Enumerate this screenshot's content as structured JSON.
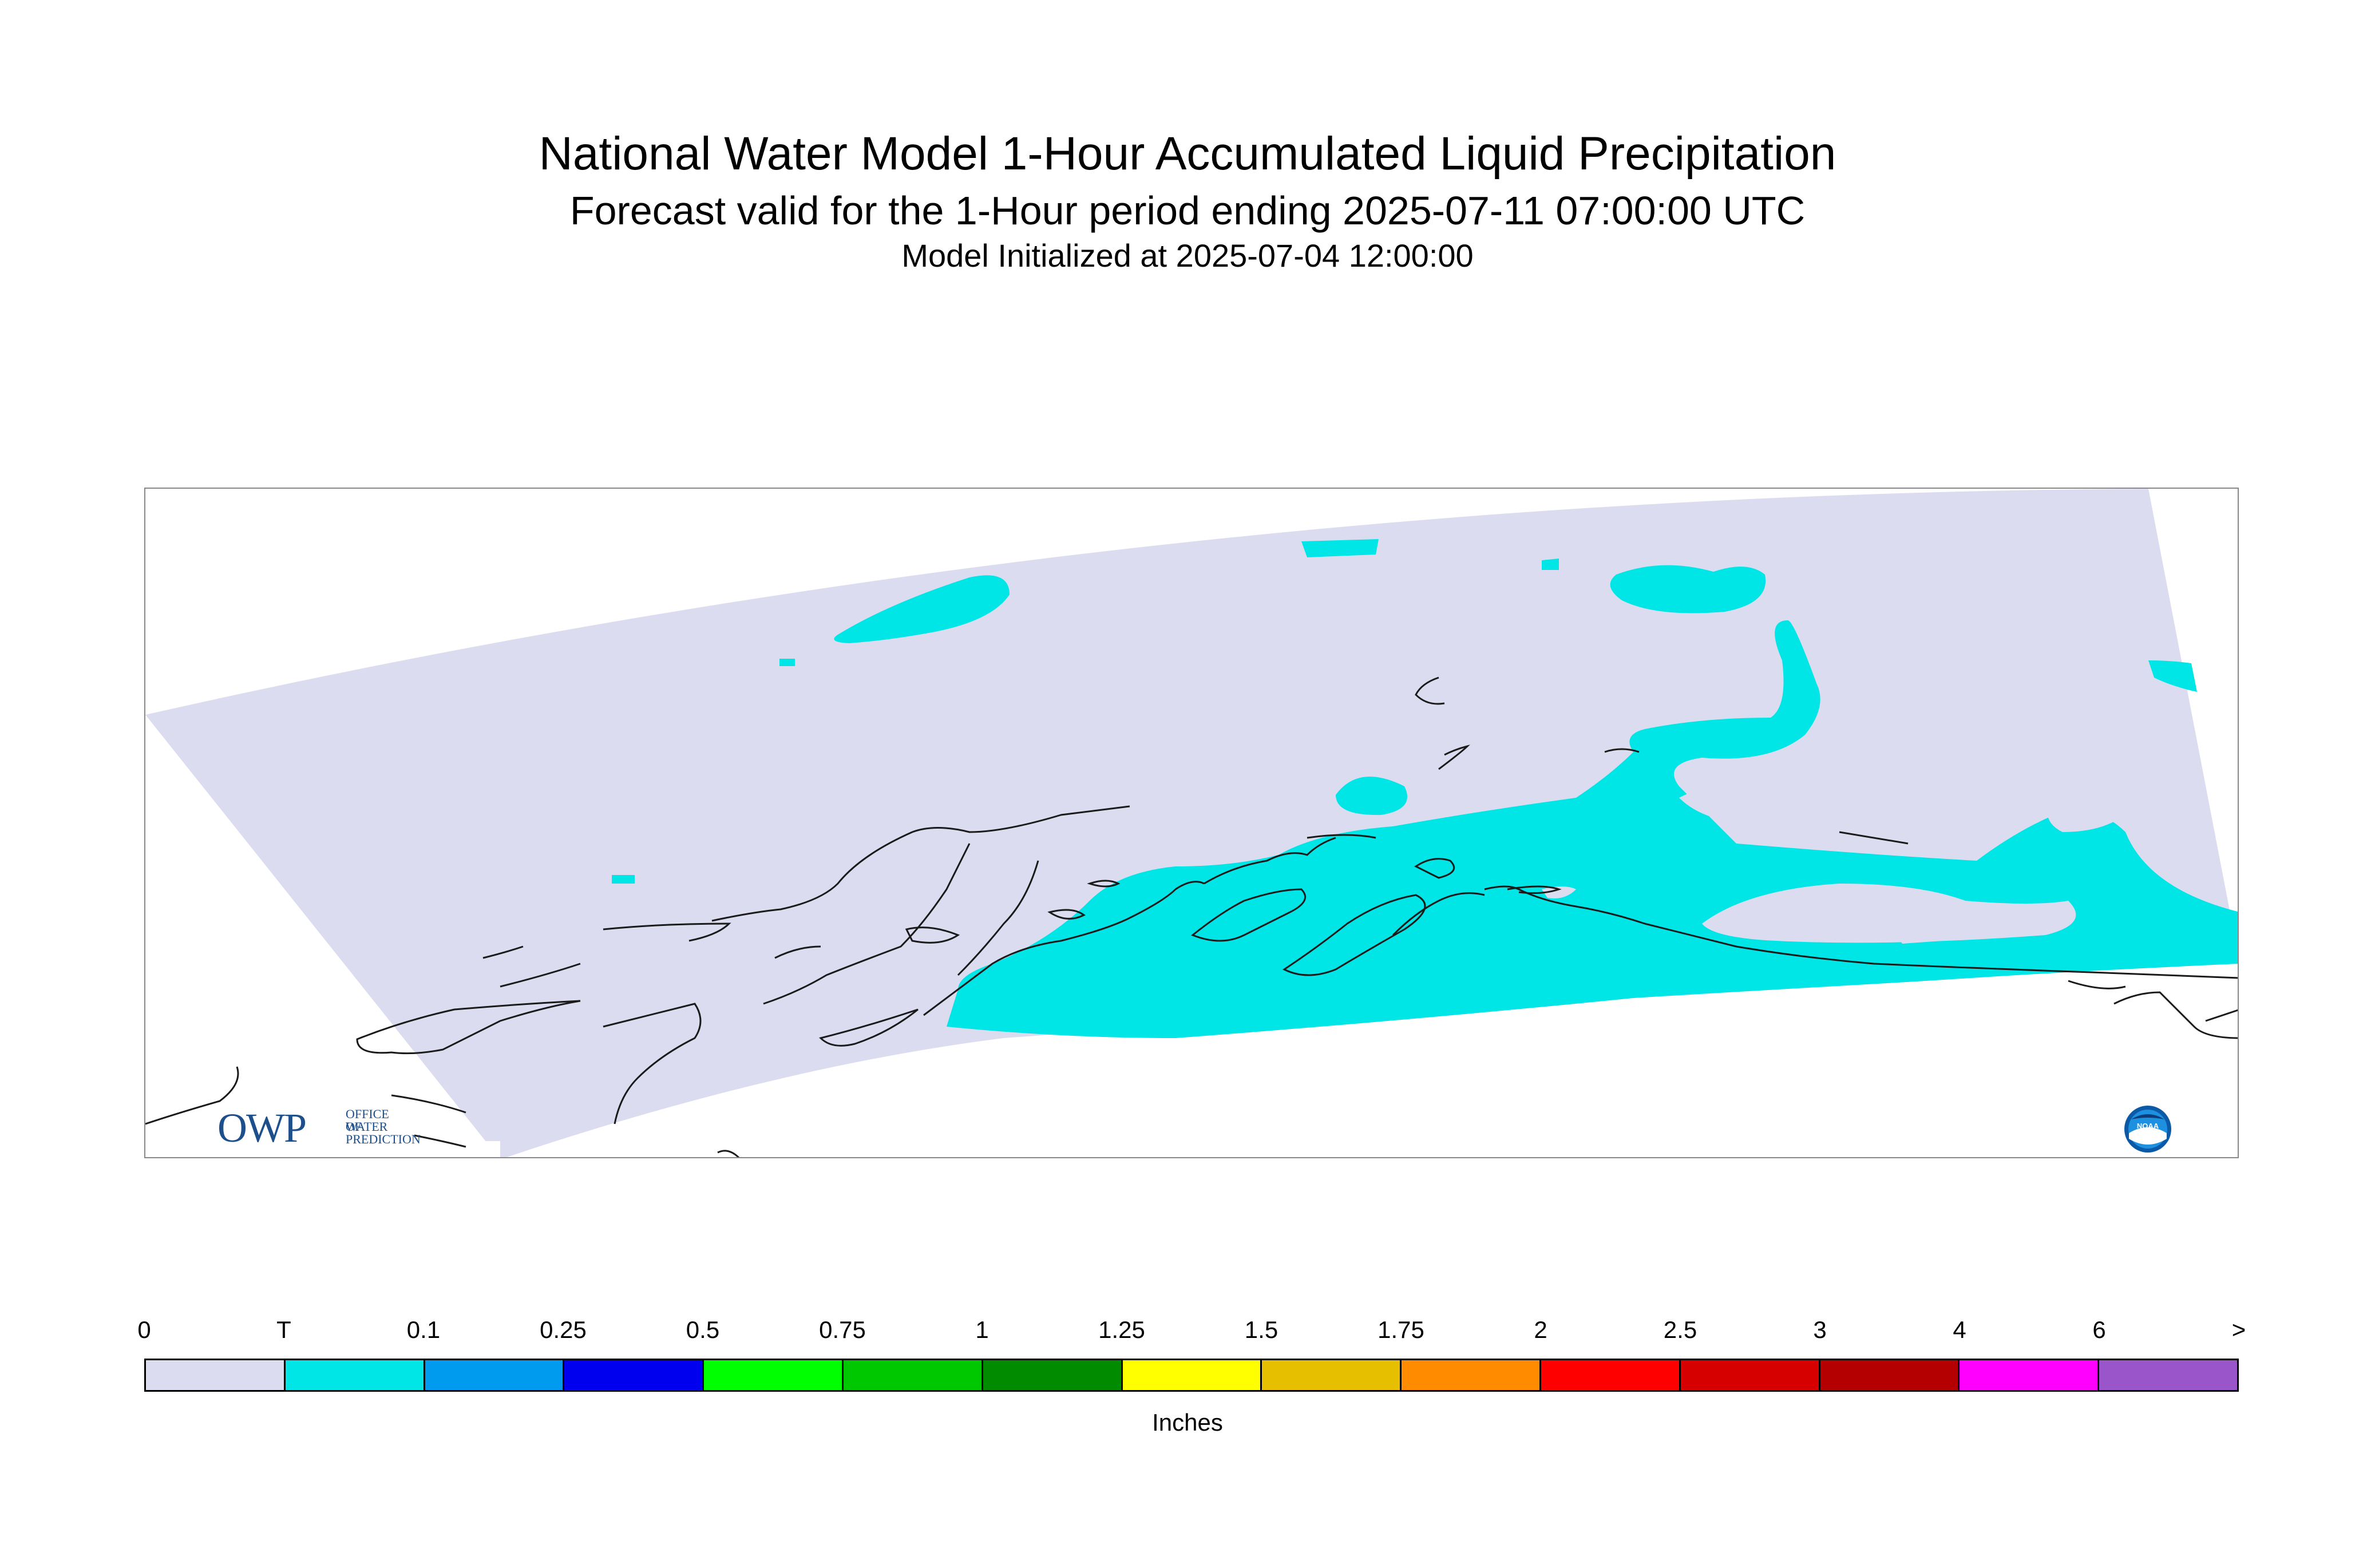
{
  "header": {
    "title": "National Water Model 1-Hour Accumulated Liquid Precipitation",
    "subtitle": "Forecast valid for the 1-Hour period ending 2025-07-11 07:00:00 UTC",
    "initialized": "Model Initialized at 2025-07-04 12:00:00"
  },
  "logos": {
    "owp_letters": "OWP",
    "owp_text": [
      "OFFICE OF",
      "WATER",
      "PREDICTION"
    ],
    "noaa_text": "NOAA"
  },
  "legend": {
    "tick_labels": [
      "0",
      "T",
      "0.1",
      "0.25",
      "0.5",
      "0.75",
      "1",
      "1.25",
      "1.5",
      "1.75",
      "2",
      "2.5",
      "3",
      "4",
      "6",
      ">"
    ],
    "colors": [
      "#dcdcf0",
      "#00e5e5",
      "#009aef",
      "#0000ef",
      "#00ff00",
      "#00c800",
      "#008b00",
      "#ffff00",
      "#e5bf00",
      "#ff8c00",
      "#ff0000",
      "#d70000",
      "#b40000",
      "#ff00ff",
      "#9955c9"
    ],
    "units": "Inches"
  },
  "map_colors": {
    "domain_fill": "#dcdcf0",
    "precip_fill": "#00e5e5",
    "coast_line": "#1a1a1a"
  }
}
